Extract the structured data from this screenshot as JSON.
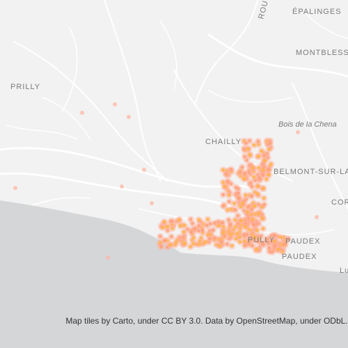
{
  "labels": [
    "ÉPALINGES",
    "MONTBLESSO",
    "PRILLY",
    "Bois de la Chena",
    "CHAILLY",
    "BELMONT-SUR-LAU",
    "COR",
    "PULLY",
    "PAUDEX",
    "PAUDEX",
    "ROUT",
    "Lu"
  ],
  "attribution": "Map tiles by Carto, under CC BY 3.0. Data by OpenStreetMap, under ODbL."
}
